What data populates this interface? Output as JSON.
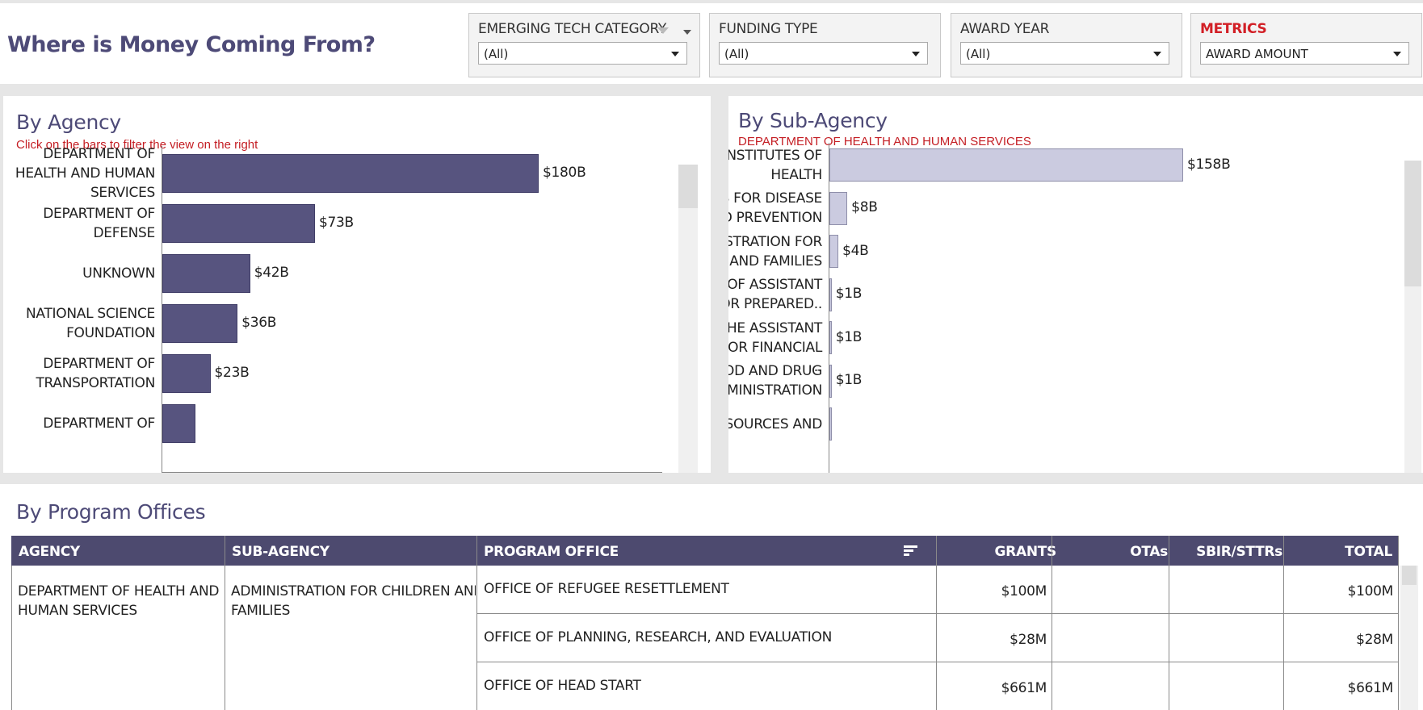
{
  "header": {
    "title": "Where is Money Coming From?",
    "filters": [
      {
        "label": "EMERGING TECH CATEGORY",
        "value": "(All)",
        "highlight": false
      },
      {
        "label": "FUNDING TYPE",
        "value": "(All)",
        "highlight": false
      },
      {
        "label": "AWARD YEAR",
        "value": "(All)",
        "highlight": false
      },
      {
        "label": "METRICS",
        "value": "AWARD AMOUNT",
        "highlight": true
      }
    ]
  },
  "by_agency": {
    "title": "By Agency",
    "subtitle": "Click on the bars to filter the view on the right",
    "bar_color": "#57547f"
  },
  "by_sub_agency": {
    "title": "By Sub-Agency",
    "subtitle": "DEPARTMENT OF HEALTH AND HUMAN SERVICES",
    "bar_color": "#cbcbe0"
  },
  "chart_data": [
    {
      "type": "bar",
      "orientation": "horizontal",
      "title": "By Agency",
      "categories": [
        "DEPARTMENT OF HEALTH AND HUMAN SERVICES",
        "DEPARTMENT OF DEFENSE",
        "UNKNOWN",
        "NATIONAL SCIENCE FOUNDATION",
        "DEPARTMENT OF TRANSPORTATION",
        "DEPARTMENT OF"
      ],
      "category_lines": [
        [
          "DEPARTMENT OF",
          "HEALTH AND HUMAN",
          "SERVICES"
        ],
        [
          "DEPARTMENT OF",
          "DEFENSE"
        ],
        [
          "UNKNOWN"
        ],
        [
          "NATIONAL SCIENCE",
          "FOUNDATION"
        ],
        [
          "DEPARTMENT OF",
          "TRANSPORTATION"
        ],
        [
          "DEPARTMENT OF"
        ]
      ],
      "values": [
        180,
        73,
        42,
        36,
        23,
        16
      ],
      "value_labels": [
        "$180B",
        "$73B",
        "$42B",
        "$36B",
        "$23B",
        ""
      ],
      "unit": "$B"
    },
    {
      "type": "bar",
      "orientation": "horizontal",
      "title": "By Sub-Agency",
      "categories": [
        "NATIONAL INSTITUTES OF HEALTH",
        "CENTERS FOR DISEASE CONTROL AND PREVENTION",
        "ADMINISTRATION FOR CHILDREN AND FAMILIES",
        "OFFICE OF ASSISTANT SECRETARY FOR PREPARED..",
        "OFFICE OF THE ASSISTANT SECRETARY FOR FINANCIAL ..",
        "FOOD AND DRUG ADMINISTRATION",
        "HEALTH RESOURCES AND"
      ],
      "category_lines": [
        [
          "NATIONAL INSTITUTES OF",
          "HEALTH"
        ],
        [
          "CENTERS FOR DISEASE",
          "CONTROL AND PREVENTION"
        ],
        [
          "ADMINISTRATION FOR",
          "CHILDREN AND FAMILIES"
        ],
        [
          "OFFICE OF ASSISTANT",
          "SECRETARY FOR PREPARED.."
        ],
        [
          "OFFICE OF THE ASSISTANT",
          "SECRETARY FOR FINANCIAL .."
        ],
        [
          "FOOD AND DRUG",
          "ADMINISTRATION"
        ],
        [
          "HEALTH RESOURCES AND"
        ]
      ],
      "values": [
        158,
        8,
        4,
        1,
        1,
        1,
        1
      ],
      "value_labels": [
        "$158B",
        "$8B",
        "$4B",
        "$1B",
        "$1B",
        "$1B",
        ""
      ],
      "unit": "$B"
    }
  ],
  "program_offices": {
    "title": "By Program Offices",
    "columns": [
      "AGENCY",
      "SUB-AGENCY",
      "PROGRAM OFFICE",
      "GRANTS",
      "OTAs",
      "SBIR/STTRs",
      "TOTAL"
    ],
    "agency_lines": [
      "DEPARTMENT OF HEALTH AND",
      "HUMAN SERVICES"
    ],
    "sub_agency_lines": [
      "ADMINISTRATION FOR CHILDREN AND",
      "FAMILIES"
    ],
    "rows": [
      {
        "program_office": "OFFICE OF REFUGEE RESETTLEMENT",
        "grants": "$100M",
        "otas": "",
        "sbir": "",
        "total": "$100M"
      },
      {
        "program_office": "OFFICE OF PLANNING, RESEARCH, AND EVALUATION",
        "grants": "$28M",
        "otas": "",
        "sbir": "",
        "total": "$28M"
      },
      {
        "program_office": "OFFICE OF HEAD START",
        "grants": "$661M",
        "otas": "",
        "sbir": "",
        "total": "$661M"
      }
    ]
  },
  "colors": {
    "accent": "#4d4a77",
    "header_bg": "#4d4a6f",
    "alert_red": "#c41e24"
  }
}
